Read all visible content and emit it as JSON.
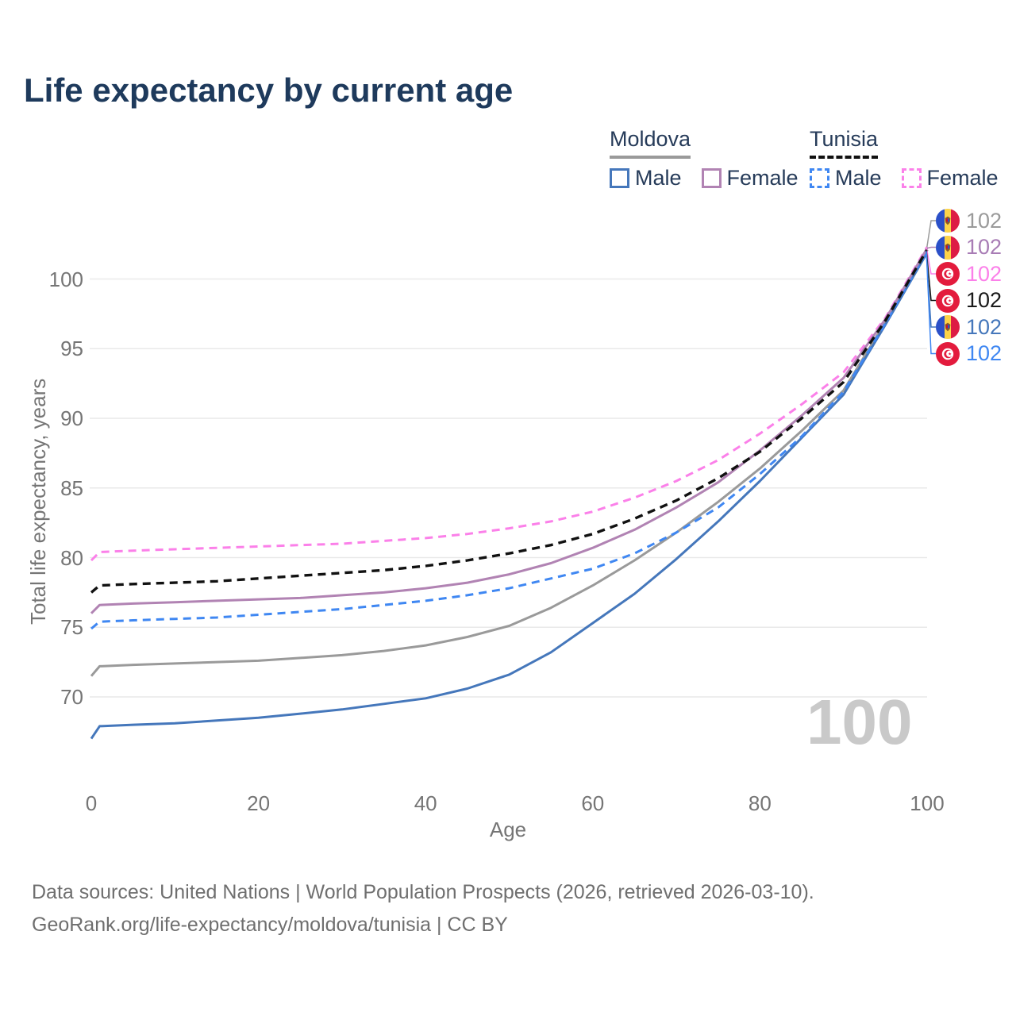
{
  "title": "Life expectancy by current age",
  "legend": {
    "groups": [
      {
        "label": "Moldova",
        "line_style": "solid",
        "underline_color": "#9a9a9a",
        "items": [
          {
            "label": "Male",
            "color": "#4577bb",
            "dashed": false
          },
          {
            "label": "Female",
            "color": "#b183b3",
            "dashed": false
          }
        ]
      },
      {
        "label": "Tunisia",
        "line_style": "dashed",
        "underline_color": "#111111",
        "items": [
          {
            "label": "Male",
            "color": "#3f87f2",
            "dashed": true
          },
          {
            "label": "Female",
            "color": "#fb80e9",
            "dashed": true
          }
        ]
      }
    ]
  },
  "chart_data": {
    "type": "line",
    "title": "Life expectancy by current age",
    "xlabel": "Age",
    "ylabel": "Total life expectancy, years",
    "xlim": [
      0,
      100
    ],
    "ylim": [
      66,
      103
    ],
    "xticks": [
      0,
      20,
      40,
      60,
      80,
      100
    ],
    "yticks": [
      70,
      75,
      80,
      85,
      90,
      95,
      100
    ],
    "grid": "horizontal",
    "x": [
      0,
      1,
      5,
      10,
      15,
      20,
      25,
      30,
      35,
      40,
      45,
      50,
      55,
      60,
      65,
      70,
      75,
      80,
      85,
      90,
      95,
      100
    ],
    "series": [
      {
        "id": "moldova-overall",
        "name": "Moldova",
        "country": "Moldova",
        "sex": "Both",
        "color": "#9a9a9a",
        "dash": false,
        "width": 3,
        "values": [
          71.5,
          72.2,
          72.3,
          72.4,
          72.5,
          72.6,
          72.8,
          73.0,
          73.3,
          73.7,
          74.3,
          75.1,
          76.4,
          78.0,
          79.8,
          81.8,
          84.0,
          86.4,
          89.1,
          92.0,
          96.9,
          102.0
        ]
      },
      {
        "id": "moldova-male",
        "name": "Moldova Male",
        "country": "Moldova",
        "sex": "Male",
        "color": "#4577bb",
        "dash": false,
        "width": 3,
        "values": [
          67.0,
          67.9,
          68.0,
          68.1,
          68.3,
          68.5,
          68.8,
          69.1,
          69.5,
          69.9,
          70.6,
          71.6,
          73.2,
          75.3,
          77.4,
          79.9,
          82.6,
          85.5,
          88.6,
          91.7,
          96.7,
          101.9
        ]
      },
      {
        "id": "tunisia-male",
        "name": "Tunisia Male",
        "country": "Tunisia",
        "sex": "Male",
        "color": "#3f87f2",
        "dash": true,
        "width": 3,
        "values": [
          74.9,
          75.4,
          75.5,
          75.6,
          75.7,
          75.9,
          76.1,
          76.3,
          76.6,
          76.9,
          77.3,
          77.8,
          78.5,
          79.2,
          80.3,
          81.8,
          83.6,
          86.0,
          88.7,
          91.9,
          96.8,
          102.0
        ]
      },
      {
        "id": "tunisia-female",
        "name": "Tunisia Female",
        "country": "Tunisia",
        "sex": "Female",
        "color": "#fb80e9",
        "dash": true,
        "width": 3,
        "values": [
          79.8,
          80.4,
          80.5,
          80.6,
          80.7,
          80.8,
          80.9,
          81.0,
          81.2,
          81.4,
          81.7,
          82.1,
          82.6,
          83.3,
          84.3,
          85.5,
          87.0,
          88.9,
          91.0,
          93.3,
          97.2,
          102.3
        ]
      },
      {
        "id": "moldova-female",
        "name": "Moldova Female",
        "country": "Moldova",
        "sex": "Female",
        "color": "#b183b3",
        "dash": false,
        "width": 3,
        "values": [
          76.0,
          76.6,
          76.7,
          76.8,
          76.9,
          77.0,
          77.1,
          77.3,
          77.5,
          77.8,
          78.2,
          78.8,
          79.6,
          80.7,
          82.0,
          83.6,
          85.4,
          87.7,
          90.2,
          92.9,
          97.1,
          102.2
        ]
      },
      {
        "id": "tunisia-overall",
        "name": "Tunisia",
        "country": "Tunisia",
        "sex": "Both",
        "color": "#111111",
        "dash": true,
        "width": 3.4,
        "values": [
          77.5,
          78.0,
          78.1,
          78.2,
          78.3,
          78.5,
          78.7,
          78.9,
          79.1,
          79.4,
          79.8,
          80.3,
          80.9,
          81.7,
          82.8,
          84.1,
          85.7,
          87.6,
          90.0,
          92.6,
          97.0,
          102.1
        ]
      }
    ]
  },
  "end_labels": [
    {
      "flag": "moldova",
      "value": "102",
      "color": "#9a9a9a",
      "series": 0
    },
    {
      "flag": "moldova",
      "value": "102",
      "color": "#a87cb5",
      "series": 4
    },
    {
      "flag": "tunisia",
      "value": "102",
      "color": "#fb80e9",
      "series": 3
    },
    {
      "flag": "tunisia",
      "value": "102",
      "color": "#1a1a1a",
      "series": 5
    },
    {
      "flag": "moldova",
      "value": "102",
      "color": "#4577bb",
      "series": 1
    },
    {
      "flag": "tunisia",
      "value": "102",
      "color": "#3f87f2",
      "series": 2
    }
  ],
  "watermark": "100",
  "footer": {
    "line1": "Data sources: United Nations | World Population Prospects (2026, retrieved 2026-03-10).",
    "line2": "GeoRank.org/life-expectancy/moldova/tunisia | CC BY"
  }
}
